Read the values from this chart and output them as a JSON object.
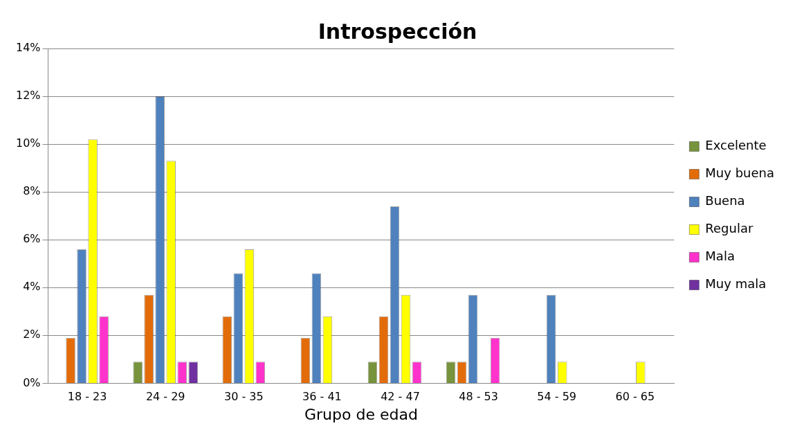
{
  "chart_data": {
    "type": "bar",
    "title": "Introspección",
    "xlabel": "Grupo de edad",
    "categories": [
      "18 - 23",
      "24 - 29",
      "30 - 35",
      "36 - 41",
      "42 - 47",
      "48 - 53",
      "54 - 59",
      "60 - 65"
    ],
    "series": [
      {
        "name": "Excelente",
        "color": "#77933c",
        "values": [
          0,
          0.9,
          0,
          0,
          0.9,
          0.9,
          0,
          0
        ]
      },
      {
        "name": "Muy buena",
        "color": "#e36c0a",
        "values": [
          1.9,
          3.7,
          2.8,
          1.9,
          2.8,
          0.9,
          0,
          0
        ]
      },
      {
        "name": "Buena",
        "color": "#4f81bd",
        "values": [
          5.6,
          12.0,
          4.6,
          4.6,
          7.4,
          3.7,
          3.7,
          0
        ]
      },
      {
        "name": "Regular",
        "color": "#ffff00",
        "values": [
          10.2,
          9.3,
          5.6,
          2.8,
          3.7,
          0,
          0.9,
          0.9
        ]
      },
      {
        "name": "Mala",
        "color": "#ff33cc",
        "values": [
          2.8,
          0.9,
          0.9,
          0,
          0.9,
          1.9,
          0,
          0
        ]
      },
      {
        "name": "Muy mala",
        "color": "#7030a0",
        "values": [
          0,
          0.9,
          0,
          0,
          0,
          0,
          0,
          0
        ]
      }
    ],
    "ylim": [
      0,
      14
    ],
    "yticks": [
      {
        "value": 0,
        "label": "0%"
      },
      {
        "value": 2,
        "label": "2%"
      },
      {
        "value": 4,
        "label": "4%"
      },
      {
        "value": 6,
        "label": "6%"
      },
      {
        "value": 8,
        "label": "8%"
      },
      {
        "value": 10,
        "label": "10%"
      },
      {
        "value": 12,
        "label": "12%"
      },
      {
        "value": 14,
        "label": "14%"
      }
    ],
    "grid": "y",
    "legend": "right"
  }
}
